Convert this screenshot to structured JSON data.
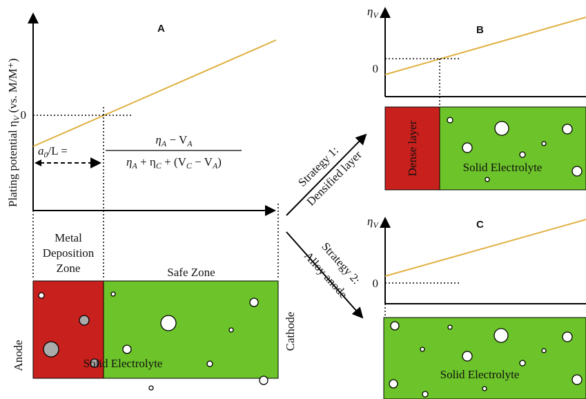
{
  "panel_a": {
    "label": "A",
    "y_axis_label": [
      "Plating potential η",
      "V",
      " (vs. M/M⁺)"
    ],
    "zero": "0",
    "equation": {
      "lhs": [
        "a",
        "0",
        "/L ="
      ],
      "numerator": [
        "η",
        "A",
        "  −  V",
        "A"
      ],
      "denominator": [
        "η",
        "A",
        "  +  η",
        "C",
        "  +  (V",
        "C",
        " − V",
        "A",
        ")"
      ]
    },
    "zone_left": [
      "Metal",
      "Deposition",
      "Zone"
    ],
    "zone_right": "Safe Zone",
    "anode": "Anode",
    "cathode": "Cathode",
    "electrolyte": "Solid Electrolyte"
  },
  "strategy_1": [
    "Strategy 1:",
    "Densified layer"
  ],
  "strategy_2": [
    "Strategy 2:",
    "Alloy anode"
  ],
  "panel_b": {
    "label": "B",
    "axis": [
      "η",
      "V"
    ],
    "zero": "0",
    "dense": "Dense layer",
    "electrolyte": "Solid Electrolyte"
  },
  "panel_c": {
    "label": "C",
    "axis": [
      "η",
      "V"
    ],
    "zero": "0",
    "electrolyte": "Solid Electrolyte"
  }
}
